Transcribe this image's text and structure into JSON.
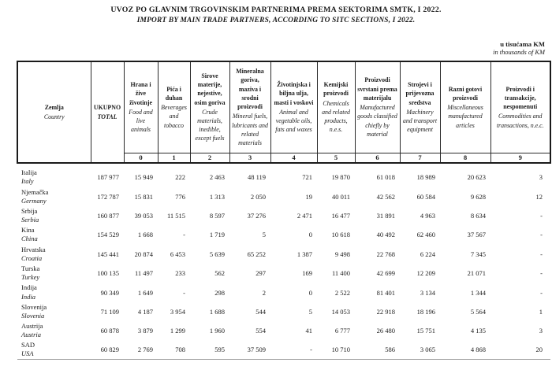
{
  "title": {
    "bs": "UVOZ PO GLAVNIM TRGOVINSKIM PARTNERIMA PREMA SEKTORIMA SMTK, I 2022.",
    "en": "IMPORT BY MAIN TRADE PARTNERS, ACCORDING TO SITC SECTIONS, I 2022."
  },
  "units": {
    "bs": "u tisućama KM",
    "en": "in thousands of KM"
  },
  "table": {
    "country_header": {
      "bs": "Zemlja",
      "en": "Country"
    },
    "total_header": {
      "bs": "UKUPNO",
      "en": "TOTAL"
    },
    "sections": [
      {
        "code": "0",
        "bs": "Hrana i žive životinje",
        "en": "Food and live animals"
      },
      {
        "code": "1",
        "bs": "Pića i duhan",
        "en": "Beverages and tobacco"
      },
      {
        "code": "2",
        "bs": "Sirove materije, nejestive, osim goriva",
        "en": "Crude materials, inedible, except fuels"
      },
      {
        "code": "3",
        "bs": "Mineralna goriva, maziva i srodni proizvodi",
        "en": "Mineral fuels, lubricants and related materials"
      },
      {
        "code": "4",
        "bs": "Životinjska i biljna ulja, masti i voskovi",
        "en": "Animal and vegetable oils, fats and waxes"
      },
      {
        "code": "5",
        "bs": "Kemijski proizvodi",
        "en": "Chemicals and related products, n.e.s."
      },
      {
        "code": "6",
        "bs": "Proizvodi svrstani prema materijalu",
        "en": "Manufactured goods classified chiefly by material"
      },
      {
        "code": "7",
        "bs": "Strojevi i prijevozna sredstva",
        "en": "Machinery and transport equipment"
      },
      {
        "code": "8",
        "bs": "Razni gotovi proizvodi",
        "en": "Miscellaneous manufactured articles"
      },
      {
        "code": "9",
        "bs": "Proizvodi i transakcije, nespomenuti",
        "en": "Commodities and transactions, n.e.c."
      }
    ],
    "rows": [
      {
        "bs": "Italija",
        "en": "Italy",
        "total": "187 977",
        "values": [
          "15 949",
          "222",
          "2 463",
          "48 119",
          "721",
          "19 870",
          "61 018",
          "18 989",
          "20 623",
          "3"
        ]
      },
      {
        "bs": "Njemačka",
        "en": "Germany",
        "total": "172 787",
        "values": [
          "15 831",
          "776",
          "1 313",
          "2 050",
          "19",
          "40 011",
          "42 562",
          "60 584",
          "9 628",
          "12"
        ]
      },
      {
        "bs": "Srbija",
        "en": "Serbia",
        "total": "160 877",
        "values": [
          "39 053",
          "11 515",
          "8 597",
          "37 276",
          "2 471",
          "16 477",
          "31 891",
          "4 963",
          "8 634",
          "-"
        ]
      },
      {
        "bs": "Kina",
        "en": "China",
        "total": "154 529",
        "values": [
          "1 668",
          "-",
          "1 719",
          "5",
          "0",
          "10 618",
          "40 492",
          "62 460",
          "37 567",
          "-"
        ]
      },
      {
        "bs": "Hrvatska",
        "en": "Croatia",
        "total": "145 441",
        "values": [
          "20 874",
          "6 453",
          "5 639",
          "65 252",
          "1 387",
          "9 498",
          "22 768",
          "6 224",
          "7 345",
          "-"
        ]
      },
      {
        "bs": "Turska",
        "en": "Turkey",
        "total": "100 135",
        "values": [
          "11 497",
          "233",
          "562",
          "297",
          "169",
          "11 400",
          "42 699",
          "12 209",
          "21 071",
          "-"
        ]
      },
      {
        "bs": "Indija",
        "en": "India",
        "total": "90 349",
        "values": [
          "1 649",
          "-",
          "298",
          "2",
          "0",
          "2 522",
          "81 401",
          "3 134",
          "1 344",
          "-"
        ]
      },
      {
        "bs": "Slovenija",
        "en": "Slovenia",
        "total": "71 109",
        "values": [
          "4 187",
          "3 954",
          "1 688",
          "544",
          "5",
          "14 053",
          "22 918",
          "18 196",
          "5 564",
          "1"
        ]
      },
      {
        "bs": "Austrija",
        "en": "Austria",
        "total": "60 878",
        "values": [
          "3 879",
          "1 299",
          "1 960",
          "554",
          "41",
          "6 777",
          "26 480",
          "15 751",
          "4 135",
          "3"
        ]
      },
      {
        "bs": "SAD",
        "en": "USA",
        "total": "60 829",
        "values": [
          "2 769",
          "708",
          "595",
          "37 509",
          "-",
          "10 710",
          "586",
          "3 065",
          "4 868",
          "20"
        ]
      }
    ]
  }
}
